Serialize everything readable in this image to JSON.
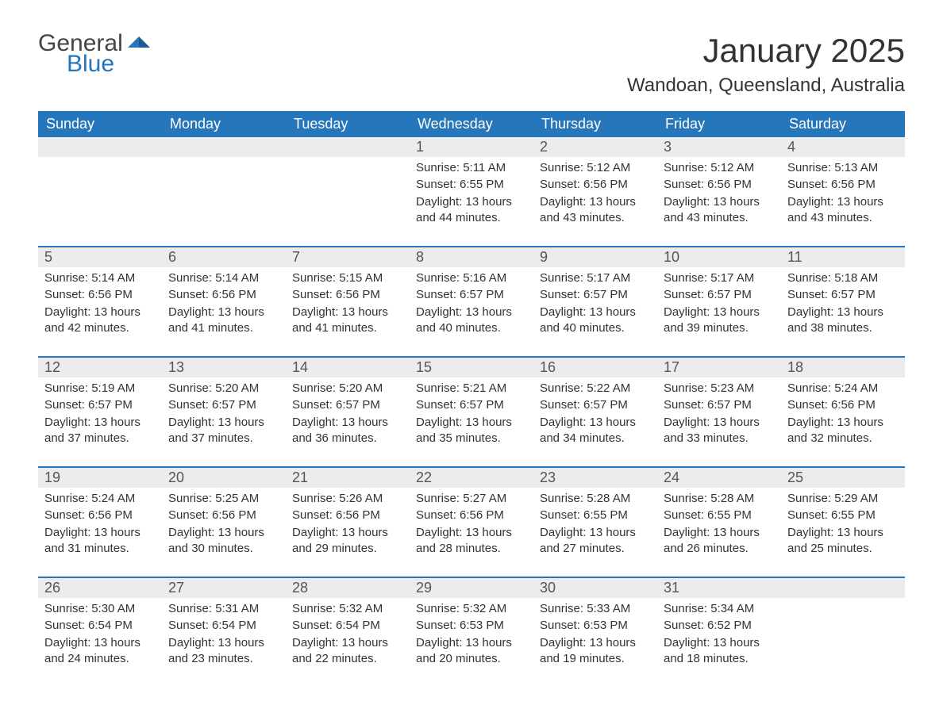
{
  "logo": {
    "text1": "General",
    "text2": "Blue",
    "brand_color": "#2676bb",
    "gray": "#444444"
  },
  "title": "January 2025",
  "location": "Wandoan, Queensland, Australia",
  "colors": {
    "header_bg": "#2676bb",
    "header_text": "#ffffff",
    "daynum_bg": "#ececec",
    "daynum_text": "#555555",
    "body_text": "#333333",
    "page_bg": "#ffffff"
  },
  "typography": {
    "title_fontsize": 42,
    "location_fontsize": 24,
    "dayheader_fontsize": 18,
    "daynum_fontsize": 18,
    "cell_fontsize": 15
  },
  "day_headers": [
    "Sunday",
    "Monday",
    "Tuesday",
    "Wednesday",
    "Thursday",
    "Friday",
    "Saturday"
  ],
  "labels": {
    "sunrise": "Sunrise:",
    "sunset": "Sunset:",
    "daylight": "Daylight:",
    "hours_word": "hours",
    "and_word": "and",
    "minutes_word": "minutes."
  },
  "weeks": [
    [
      null,
      null,
      null,
      {
        "n": "1",
        "sunrise": "5:11 AM",
        "sunset": "6:55 PM",
        "dl_h": 13,
        "dl_m": 44
      },
      {
        "n": "2",
        "sunrise": "5:12 AM",
        "sunset": "6:56 PM",
        "dl_h": 13,
        "dl_m": 43
      },
      {
        "n": "3",
        "sunrise": "5:12 AM",
        "sunset": "6:56 PM",
        "dl_h": 13,
        "dl_m": 43
      },
      {
        "n": "4",
        "sunrise": "5:13 AM",
        "sunset": "6:56 PM",
        "dl_h": 13,
        "dl_m": 43
      }
    ],
    [
      {
        "n": "5",
        "sunrise": "5:14 AM",
        "sunset": "6:56 PM",
        "dl_h": 13,
        "dl_m": 42
      },
      {
        "n": "6",
        "sunrise": "5:14 AM",
        "sunset": "6:56 PM",
        "dl_h": 13,
        "dl_m": 41
      },
      {
        "n": "7",
        "sunrise": "5:15 AM",
        "sunset": "6:56 PM",
        "dl_h": 13,
        "dl_m": 41
      },
      {
        "n": "8",
        "sunrise": "5:16 AM",
        "sunset": "6:57 PM",
        "dl_h": 13,
        "dl_m": 40
      },
      {
        "n": "9",
        "sunrise": "5:17 AM",
        "sunset": "6:57 PM",
        "dl_h": 13,
        "dl_m": 40
      },
      {
        "n": "10",
        "sunrise": "5:17 AM",
        "sunset": "6:57 PM",
        "dl_h": 13,
        "dl_m": 39
      },
      {
        "n": "11",
        "sunrise": "5:18 AM",
        "sunset": "6:57 PM",
        "dl_h": 13,
        "dl_m": 38
      }
    ],
    [
      {
        "n": "12",
        "sunrise": "5:19 AM",
        "sunset": "6:57 PM",
        "dl_h": 13,
        "dl_m": 37
      },
      {
        "n": "13",
        "sunrise": "5:20 AM",
        "sunset": "6:57 PM",
        "dl_h": 13,
        "dl_m": 37
      },
      {
        "n": "14",
        "sunrise": "5:20 AM",
        "sunset": "6:57 PM",
        "dl_h": 13,
        "dl_m": 36
      },
      {
        "n": "15",
        "sunrise": "5:21 AM",
        "sunset": "6:57 PM",
        "dl_h": 13,
        "dl_m": 35
      },
      {
        "n": "16",
        "sunrise": "5:22 AM",
        "sunset": "6:57 PM",
        "dl_h": 13,
        "dl_m": 34
      },
      {
        "n": "17",
        "sunrise": "5:23 AM",
        "sunset": "6:57 PM",
        "dl_h": 13,
        "dl_m": 33
      },
      {
        "n": "18",
        "sunrise": "5:24 AM",
        "sunset": "6:56 PM",
        "dl_h": 13,
        "dl_m": 32
      }
    ],
    [
      {
        "n": "19",
        "sunrise": "5:24 AM",
        "sunset": "6:56 PM",
        "dl_h": 13,
        "dl_m": 31
      },
      {
        "n": "20",
        "sunrise": "5:25 AM",
        "sunset": "6:56 PM",
        "dl_h": 13,
        "dl_m": 30
      },
      {
        "n": "21",
        "sunrise": "5:26 AM",
        "sunset": "6:56 PM",
        "dl_h": 13,
        "dl_m": 29
      },
      {
        "n": "22",
        "sunrise": "5:27 AM",
        "sunset": "6:56 PM",
        "dl_h": 13,
        "dl_m": 28
      },
      {
        "n": "23",
        "sunrise": "5:28 AM",
        "sunset": "6:55 PM",
        "dl_h": 13,
        "dl_m": 27
      },
      {
        "n": "24",
        "sunrise": "5:28 AM",
        "sunset": "6:55 PM",
        "dl_h": 13,
        "dl_m": 26
      },
      {
        "n": "25",
        "sunrise": "5:29 AM",
        "sunset": "6:55 PM",
        "dl_h": 13,
        "dl_m": 25
      }
    ],
    [
      {
        "n": "26",
        "sunrise": "5:30 AM",
        "sunset": "6:54 PM",
        "dl_h": 13,
        "dl_m": 24
      },
      {
        "n": "27",
        "sunrise": "5:31 AM",
        "sunset": "6:54 PM",
        "dl_h": 13,
        "dl_m": 23
      },
      {
        "n": "28",
        "sunrise": "5:32 AM",
        "sunset": "6:54 PM",
        "dl_h": 13,
        "dl_m": 22
      },
      {
        "n": "29",
        "sunrise": "5:32 AM",
        "sunset": "6:53 PM",
        "dl_h": 13,
        "dl_m": 20
      },
      {
        "n": "30",
        "sunrise": "5:33 AM",
        "sunset": "6:53 PM",
        "dl_h": 13,
        "dl_m": 19
      },
      {
        "n": "31",
        "sunrise": "5:34 AM",
        "sunset": "6:52 PM",
        "dl_h": 13,
        "dl_m": 18
      },
      null
    ]
  ]
}
